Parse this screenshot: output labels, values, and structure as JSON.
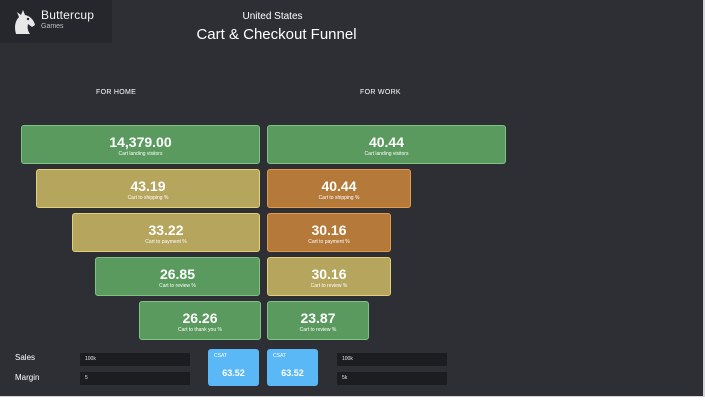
{
  "logo": {
    "name": "Buttercup",
    "sub": "Games"
  },
  "header": {
    "country": "United States",
    "title": "Cart & Checkout Funnel"
  },
  "columns": {
    "home": "FOR HOME",
    "work": "FOR WORK"
  },
  "home": [
    {
      "value": "14,379.00",
      "label": "Cart landing visitors",
      "color": "#5a9a5f"
    },
    {
      "value": "43.19",
      "label": "Cart to shipping %",
      "color": "#b5a55d"
    },
    {
      "value": "33.22",
      "label": "Cart to payment %",
      "color": "#b5a55d"
    },
    {
      "value": "26.85",
      "label": "Cart to review %",
      "color": "#5a9a5f"
    },
    {
      "value": "26.26",
      "label": "Cart to thank you %",
      "color": "#5a9a5f"
    }
  ],
  "work": [
    {
      "value": "40.44",
      "label": "Cart landing visitors",
      "color": "#5a9a5f"
    },
    {
      "value": "40.44",
      "label": "Cart to shipping %",
      "color": "#b5793a"
    },
    {
      "value": "30.16",
      "label": "Cart to payment %",
      "color": "#b5793a"
    },
    {
      "value": "30.16",
      "label": "Cart to review %",
      "color": "#b5a55d"
    },
    {
      "value": "23.87",
      "label": "Cart to review %",
      "color": "#5a9a5f"
    }
  ],
  "controls": {
    "sales_label": "Sales",
    "margin_label": "Margin",
    "home_sales": "100k",
    "home_margin": "5",
    "work_sales": "100k",
    "work_margin": "5k"
  },
  "csat": [
    {
      "label": "CSAT",
      "value": "63.52"
    },
    {
      "label": "CSAT",
      "value": "63.52"
    }
  ]
}
